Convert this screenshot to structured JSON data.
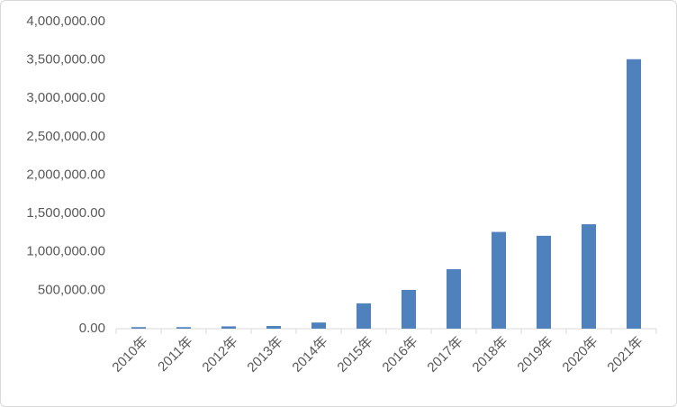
{
  "chart_data": {
    "type": "bar",
    "categories": [
      "2010年",
      "2011年",
      "2012年",
      "2013年",
      "2014年",
      "2015年",
      "2016年",
      "2017年",
      "2018年",
      "2019年",
      "2020年",
      "2021年"
    ],
    "values": [
      20000,
      20000,
      30000,
      35000,
      80000,
      330000,
      505000,
      775000,
      1260000,
      1210000,
      1360000,
      3510000
    ],
    "color": "#4f81bd",
    "ylim": [
      0,
      4000000
    ],
    "yticks": [
      {
        "value": 0,
        "label": "0.00"
      },
      {
        "value": 500000,
        "label": "500,000.00"
      },
      {
        "value": 1000000,
        "label": "1,000,000.00"
      },
      {
        "value": 1500000,
        "label": "1,500,000.00"
      },
      {
        "value": 2000000,
        "label": "2,000,000.00"
      },
      {
        "value": 2500000,
        "label": "2,500,000.00"
      },
      {
        "value": 3000000,
        "label": "3,000,000.00"
      },
      {
        "value": 3500000,
        "label": "3,500,000.00"
      },
      {
        "value": 4000000,
        "label": "4,000,000.00"
      }
    ],
    "grid": false
  }
}
